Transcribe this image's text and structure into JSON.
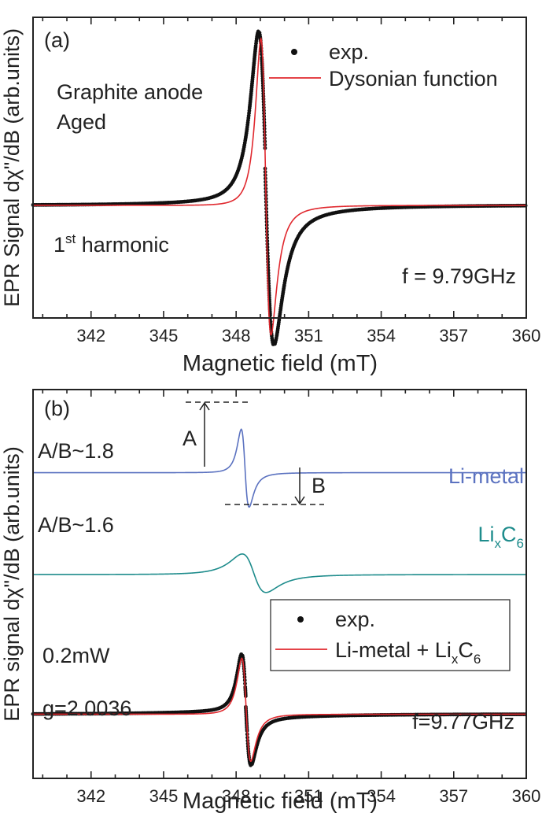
{
  "chart_data": [
    {
      "panel": "(a)",
      "type": "line",
      "xlabel": "Magnetic field (mT)",
      "ylabel": "EPR Signal dχ\"/dB (arb.units)",
      "xlim": [
        339.6,
        360
      ],
      "ylim": [
        -1.05,
        1.75
      ],
      "x_ticks": [
        342,
        345,
        348,
        351,
        354,
        357,
        360
      ],
      "annotations": {
        "sample_line1": "Graphite anode",
        "sample_line2": "Aged",
        "harmonic_base": "1",
        "harmonic_sup": "st",
        "harmonic_rest": " harmonic",
        "frequency": "f = 9.79GHz"
      },
      "legend": {
        "position": "top-right",
        "entries": [
          {
            "label": "exp.",
            "marker": "dot",
            "color": "#111111"
          },
          {
            "label": "Dysonian function",
            "marker": "line",
            "color": "#e0282e"
          }
        ]
      },
      "series": [
        {
          "name": "exp.",
          "kind": "scatter",
          "color": "#111111",
          "center": 349.2,
          "width": 0.52,
          "amp": 1.62,
          "asym": 0.2,
          "tail": 0.08
        },
        {
          "name": "Dysonian function",
          "kind": "line",
          "color": "#e0282e",
          "center": 349.2,
          "width": 0.36,
          "amp": 1.6,
          "asym": 0.22
        }
      ]
    },
    {
      "panel": "(b)",
      "type": "line",
      "xlabel": "Magnetic field (mT)",
      "ylabel": "EPR signal dχ\"/dB (arb.units)",
      "xlim": [
        339.6,
        360
      ],
      "ylim": [
        -1.7,
        8.6
      ],
      "x_ticks": [
        342,
        345,
        348,
        351,
        354,
        357,
        360
      ],
      "annotations": {
        "ratio_metal": "A/B~1.8",
        "ratio_lic6": "A/B~1.6",
        "label_metal": "Li-metal",
        "label_lic6_base": "Li",
        "label_lic6_sub1": "x",
        "label_lic6_mid": "C",
        "label_lic6_sub2": "6",
        "marker_a": "A",
        "marker_b": "B",
        "power": "0.2mW",
        "g_factor": "g=2.0036",
        "frequency": "f=9.77GHz"
      },
      "legend": {
        "position": "center-right",
        "entries": [
          {
            "label": "exp.",
            "marker": "dot",
            "color": "#111111"
          },
          {
            "label_base": "Li-metal + Li",
            "label_sub1": "x",
            "label_mid": "C",
            "label_sub2": "6",
            "marker": "line",
            "color": "#e0282e"
          }
        ]
      },
      "series": [
        {
          "name": "Li-metal",
          "kind": "line",
          "color": "#5b72c0",
          "offset": 6.4,
          "center": 348.35,
          "width": 0.28,
          "amp": 1.2,
          "asym": 0.2
        },
        {
          "name": "LixC6",
          "kind": "line",
          "color": "#1e8c8c",
          "offset": 3.7,
          "center": 348.7,
          "width": 0.85,
          "amp": 0.6,
          "asym": 0.12
        },
        {
          "name": "exp.",
          "kind": "scatter",
          "color": "#111111",
          "offset": 0,
          "center": 348.4,
          "width": 0.32,
          "amp": 1.6,
          "asym": 0.15,
          "tail": 0.12
        },
        {
          "name": "Li-metal + LixC6",
          "kind": "line",
          "color": "#e0282e",
          "offset": 0,
          "center": 348.4,
          "width": 0.32,
          "amp": 1.6,
          "asym": 0.15
        }
      ]
    }
  ]
}
